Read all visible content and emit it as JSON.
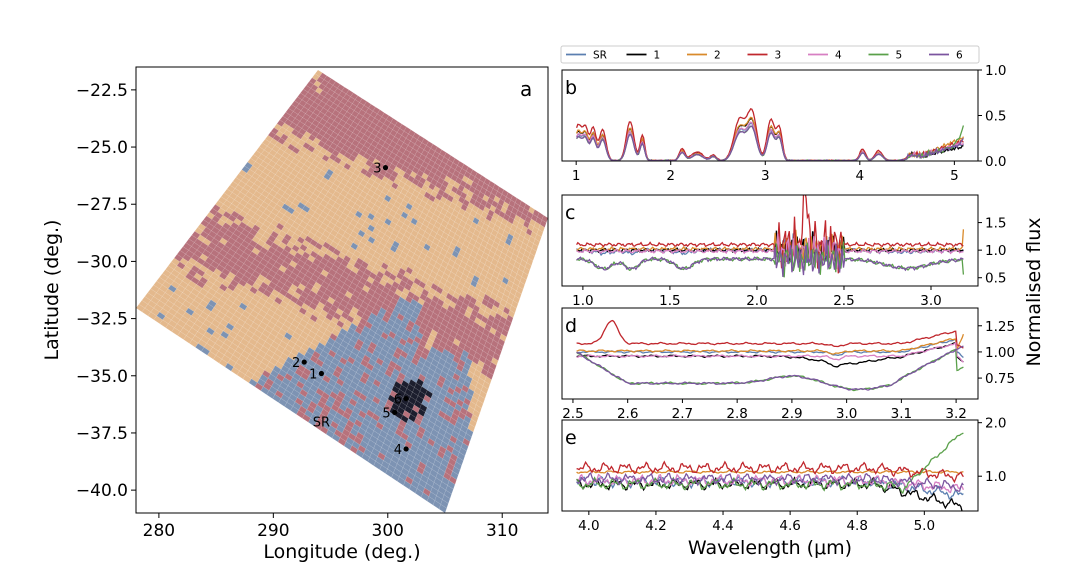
{
  "chart_data": [
    {
      "panel": "a",
      "type": "heatmap",
      "title": "",
      "panel_label": "a",
      "xlabel": "Longitude (deg.)",
      "ylabel": "Latitude (deg.)",
      "xlim": [
        278,
        314
      ],
      "ylim": [
        -41,
        -21.5
      ],
      "xticks": [
        280,
        290,
        300,
        310
      ],
      "xtick_labels": [
        "280",
        "290",
        "300",
        "310"
      ],
      "yticks": [
        -22.5,
        -25.0,
        -27.5,
        -30.0,
        -32.5,
        -35.0,
        -37.5,
        -40.0
      ],
      "ytick_labels": [
        "−22.5",
        "−25.0",
        "−27.5",
        "−30.0",
        "−32.5",
        "−35.0",
        "−37.5",
        "−40.0"
      ],
      "categories_colors": {
        "tan": "#e4b98d",
        "red": "#b7727c",
        "blue": "#7d93b3",
        "dark": "#1c1e2e"
      },
      "points": [
        {
          "label": "1",
          "lon": 294.2,
          "lat": -34.9
        },
        {
          "label": "2",
          "lon": 292.7,
          "lat": -34.4
        },
        {
          "label": "3",
          "lon": 299.8,
          "lat": -25.9
        },
        {
          "label": "4",
          "lon": 301.6,
          "lat": -38.2
        },
        {
          "label": "5",
          "lon": 300.6,
          "lat": -36.6
        },
        {
          "label": "6",
          "lon": 301.6,
          "lat": -36.0
        },
        {
          "label": "SR",
          "lon": 294.2,
          "lat": -37.0
        }
      ]
    },
    {
      "panel": "b",
      "type": "line",
      "panel_label": "b",
      "xlim": [
        0.85,
        5.25
      ],
      "ylim": [
        0,
        1.0
      ],
      "xticks": [
        1,
        2,
        3,
        4,
        5
      ],
      "xtick_labels": [
        "1",
        "2",
        "3",
        "4",
        "5"
      ],
      "yticks": [
        0,
        0.5,
        1.0
      ],
      "ytick_labels": [
        "0.0",
        "0.5",
        "1.0"
      ]
    },
    {
      "panel": "c",
      "type": "line",
      "panel_label": "c",
      "xlim": [
        0.88,
        3.27
      ],
      "ylim": [
        0.35,
        2.0
      ],
      "xticks": [
        1.0,
        1.5,
        2.0,
        2.5,
        3.0
      ],
      "xtick_labels": [
        "1.0",
        "1.5",
        "2.0",
        "2.5",
        "3.0"
      ],
      "yticks": [
        0.5,
        1.0,
        1.5
      ],
      "ytick_labels": [
        "0.5",
        "1.0",
        "1.5"
      ]
    },
    {
      "panel": "d",
      "type": "line",
      "panel_label": "d",
      "xlim": [
        2.48,
        3.24
      ],
      "ylim": [
        0.55,
        1.42
      ],
      "xticks": [
        2.5,
        2.6,
        2.7,
        2.8,
        2.9,
        3.0,
        3.1,
        3.2
      ],
      "xtick_labels": [
        "2.5",
        "2.6",
        "2.7",
        "2.8",
        "2.9",
        "3.0",
        "3.1",
        "3.2"
      ],
      "yticks": [
        0.75,
        1.0,
        1.25
      ],
      "ytick_labels": [
        "0.75",
        "1.00",
        "1.25"
      ]
    },
    {
      "panel": "e",
      "type": "line",
      "panel_label": "e",
      "xlim": [
        3.92,
        5.16
      ],
      "ylim": [
        0.35,
        2.05
      ],
      "xticks": [
        4.0,
        4.2,
        4.4,
        4.6,
        4.8,
        5.0
      ],
      "xtick_labels": [
        "4.0",
        "4.2",
        "4.4",
        "4.6",
        "4.8",
        "5.0"
      ],
      "yticks": [
        1.0,
        2.0
      ],
      "ytick_labels": [
        "1.0",
        "2.0"
      ]
    }
  ],
  "shared": {
    "xlabel_right": "Wavelength (μm)",
    "ylabel_right": "Normalised flux"
  },
  "legend": {
    "placement": "top",
    "entries": [
      {
        "name": "SR",
        "color": "#5b7fb0"
      },
      {
        "name": "1",
        "color": "#000000"
      },
      {
        "name": "2",
        "color": "#d98a2b"
      },
      {
        "name": "3",
        "color": "#c0272d"
      },
      {
        "name": "4",
        "color": "#d77fc3"
      },
      {
        "name": "5",
        "color": "#5aa04a"
      },
      {
        "name": "6",
        "color": "#7b559f"
      }
    ]
  }
}
